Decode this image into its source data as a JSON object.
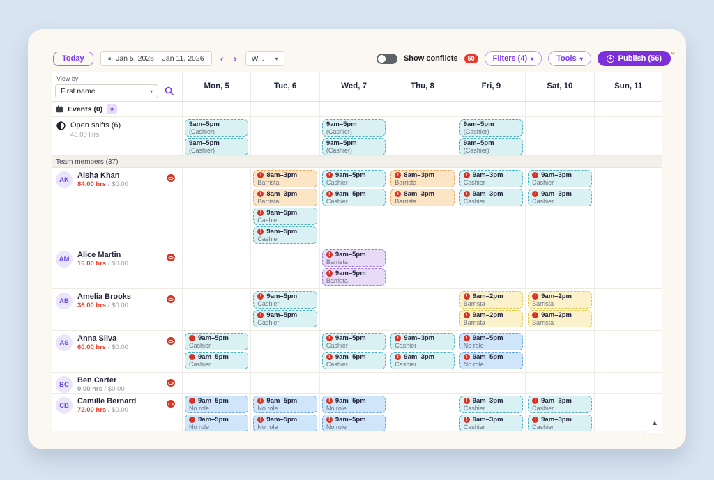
{
  "toolbar": {
    "today_label": "Today",
    "date_range": "Jan 5, 2026 – Jan 11, 2026",
    "week_select_value": "W...",
    "show_conflicts_label": "Show conflicts",
    "conflicts_count": "50",
    "filters_label": "Filters (4)",
    "tools_label": "Tools",
    "publish_label": "Publish (56)"
  },
  "sidebar": {
    "view_by_label": "View by",
    "sort_select_value": "First name",
    "events_label": "Events (0)",
    "open_shifts_label": "Open shifts (6)",
    "open_shifts_hours": "48.00 Hrs",
    "team_members_label": "Team members (37)"
  },
  "days": [
    "Mon, 5",
    "Tue, 6",
    "Wed, 7",
    "Thu, 8",
    "Fri, 9",
    "Sat, 10",
    "Sun, 11"
  ],
  "open_shifts_cells": [
    [
      {
        "time": "9am–5pm",
        "role": "(Cashier)",
        "color": "teal"
      },
      {
        "time": "9am–5pm",
        "role": "(Cashier)",
        "color": "teal"
      }
    ],
    [],
    [
      {
        "time": "9am–5pm",
        "role": "(Cashier)",
        "color": "teal"
      },
      {
        "time": "9am–5pm",
        "role": "(Cashier)",
        "color": "teal"
      }
    ],
    [],
    [
      {
        "time": "9am–5pm",
        "role": "(Cashier)",
        "color": "teal"
      },
      {
        "time": "9am–5pm",
        "role": "(Cashier)",
        "color": "teal"
      }
    ],
    [],
    []
  ],
  "members": [
    {
      "initials": "AK",
      "name": "Aisha Khan",
      "hours": "84.00 hrs",
      "rate": "/ $0.00",
      "zero_hours": false,
      "cells": [
        [],
        [
          {
            "time": "8am–3pm",
            "role": "Barrista",
            "color": "orange",
            "conflict": true
          },
          {
            "time": "8am–3pm",
            "role": "Barrista",
            "color": "orange",
            "conflict": true
          },
          {
            "time": "9am–5pm",
            "role": "Cashier",
            "color": "teal",
            "conflict": true
          },
          {
            "time": "9am–5pm",
            "role": "Cashier",
            "color": "teal",
            "conflict": true
          }
        ],
        [
          {
            "time": "9am–5pm",
            "role": "Cashier",
            "color": "teal",
            "conflict": true
          },
          {
            "time": "9am–5pm",
            "role": "Cashier",
            "color": "teal",
            "conflict": true
          }
        ],
        [
          {
            "time": "8am–3pm",
            "role": "Barrista",
            "color": "orange",
            "conflict": true
          },
          {
            "time": "8am–3pm",
            "role": "Barrista",
            "color": "orange",
            "conflict": true
          }
        ],
        [
          {
            "time": "9am–3pm",
            "role": "Cashier",
            "color": "teal",
            "conflict": true
          },
          {
            "time": "9am–3pm",
            "role": "Cashier",
            "color": "teal",
            "conflict": true
          }
        ],
        [
          {
            "time": "9am–3pm",
            "role": "Cashier",
            "color": "teal",
            "conflict": true
          },
          {
            "time": "9am–3pm",
            "role": "Cashier",
            "color": "teal",
            "conflict": true
          }
        ],
        []
      ]
    },
    {
      "initials": "AM",
      "name": "Alice Martin",
      "hours": "16.00 hrs",
      "rate": "/ $0.00",
      "zero_hours": false,
      "cells": [
        [],
        [],
        [
          {
            "time": "9am–5pm",
            "role": "Barrista",
            "color": "purple",
            "conflict": true
          },
          {
            "time": "9am–5pm",
            "role": "Barrista",
            "color": "purple",
            "conflict": true
          }
        ],
        [],
        [],
        [],
        []
      ]
    },
    {
      "initials": "AB",
      "name": "Amelia Brooks",
      "hours": "36.00 hrs",
      "rate": "/ $0.00",
      "zero_hours": false,
      "cells": [
        [],
        [
          {
            "time": "9am–5pm",
            "role": "Cashier",
            "color": "teal",
            "conflict": true
          },
          {
            "time": "9am–5pm",
            "role": "Cashier",
            "color": "teal",
            "conflict": true
          }
        ],
        [],
        [],
        [
          {
            "time": "9am–2pm",
            "role": "Barrista",
            "color": "yellow",
            "conflict": true
          },
          {
            "time": "9am–2pm",
            "role": "Barrista",
            "color": "yellow",
            "conflict": true
          }
        ],
        [
          {
            "time": "9am–2pm",
            "role": "Barrista",
            "color": "yellow",
            "conflict": true
          },
          {
            "time": "9am–2pm",
            "role": "Barrista",
            "color": "yellow",
            "conflict": true
          }
        ],
        []
      ]
    },
    {
      "initials": "AS",
      "name": "Anna Silva",
      "hours": "60.00 hrs",
      "rate": "/ $0.00",
      "zero_hours": false,
      "cells": [
        [
          {
            "time": "9am–5pm",
            "role": "Cashier",
            "color": "teal",
            "conflict": true
          },
          {
            "time": "9am–5pm",
            "role": "Cashier",
            "color": "teal",
            "conflict": true
          }
        ],
        [],
        [
          {
            "time": "9am–5pm",
            "role": "Cashier",
            "color": "teal",
            "conflict": true
          },
          {
            "time": "9am–5pm",
            "role": "Cashier",
            "color": "teal",
            "conflict": true
          }
        ],
        [
          {
            "time": "9am–3pm",
            "role": "Cashier",
            "color": "teal",
            "conflict": true
          },
          {
            "time": "9am–3pm",
            "role": "Cashier",
            "color": "teal",
            "conflict": true
          }
        ],
        [
          {
            "time": "9am–5pm",
            "role": "No role",
            "color": "blue",
            "conflict": true
          },
          {
            "time": "9am–5pm",
            "role": "No role",
            "color": "blue",
            "conflict": true
          }
        ],
        [],
        []
      ]
    },
    {
      "initials": "BC",
      "name": "Ben Carter",
      "hours": "0.00 hrs",
      "rate": "/ $0.00",
      "zero_hours": true,
      "cells": [
        [],
        [],
        [],
        [],
        [],
        [],
        []
      ]
    },
    {
      "initials": "CB",
      "name": "Camille Bernard",
      "hours": "72.00 hrs",
      "rate": "/ $0.00",
      "zero_hours": false,
      "cells": [
        [
          {
            "time": "9am–5pm",
            "role": "No role",
            "color": "blue",
            "conflict": true
          },
          {
            "time": "9am–5pm",
            "role": "No role",
            "color": "blue",
            "conflict": true
          }
        ],
        [
          {
            "time": "9am–5pm",
            "role": "No role",
            "color": "blue",
            "conflict": true
          },
          {
            "time": "9am–5pm",
            "role": "No role",
            "color": "blue",
            "conflict": true
          }
        ],
        [
          {
            "time": "9am–5pm",
            "role": "No role",
            "color": "blue",
            "conflict": true
          },
          {
            "time": "9am–5pm",
            "role": "No role",
            "color": "blue",
            "conflict": true
          }
        ],
        [],
        [
          {
            "time": "9am–3pm",
            "role": "Cashier",
            "color": "teal",
            "conflict": true
          },
          {
            "time": "9am–3pm",
            "role": "Cashier",
            "color": "teal",
            "conflict": true
          }
        ],
        [
          {
            "time": "9am–3pm",
            "role": "Cashier",
            "color": "teal",
            "conflict": true
          },
          {
            "time": "9am–3pm",
            "role": "Cashier",
            "color": "teal",
            "conflict": true
          }
        ],
        []
      ]
    }
  ],
  "icons": {
    "alert": "!",
    "star": "★",
    "prev_chevron": "‹",
    "next_chevron": "›",
    "dropdown_caret": "▾",
    "corner_caret": "⌄",
    "scroll_up": "▲",
    "publish_plus": "+"
  },
  "colors": {
    "accent_purple": "#7c3aed",
    "publish_purple": "#7c30da",
    "conflict_red": "#e8392c",
    "hours_red": "#e8432c",
    "chip_teal_bg": "#d9f1f3",
    "chip_teal_border": "#46b0c3",
    "chip_orange_bg": "#fce5c5",
    "chip_orange_border": "#eca455",
    "chip_purple_bg": "#e8dbf8",
    "chip_purple_border": "#a272e2",
    "chip_yellow_bg": "#fbf2cb",
    "chip_yellow_border": "#e2c445",
    "chip_blue_bg": "#cfe6fa",
    "chip_blue_border": "#63a2e8",
    "card_bg": "#faf8f1",
    "page_bg": "#d9e4f1"
  }
}
